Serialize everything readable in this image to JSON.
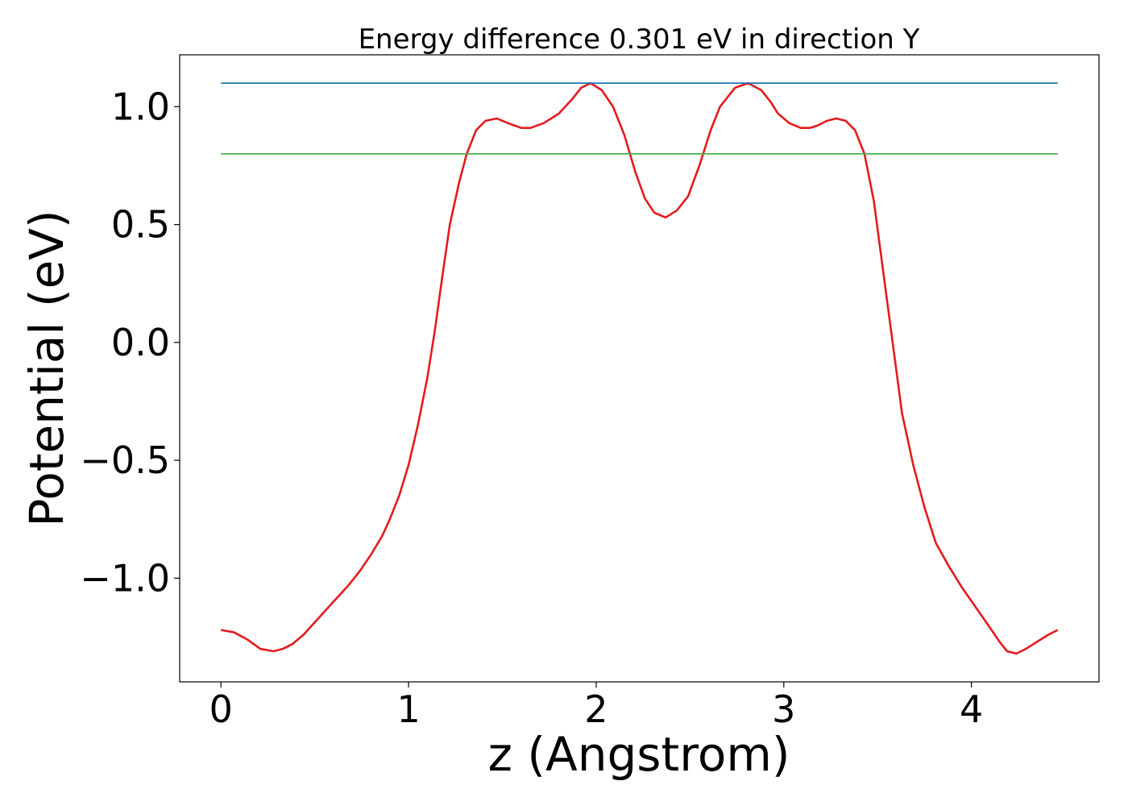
{
  "chart_data": {
    "type": "line",
    "title": "Energy difference 0.301 eV in direction Y",
    "xlabel": "z (Angstrom)",
    "ylabel": "Potential (eV)",
    "xlim": [
      -0.22,
      4.68
    ],
    "ylim": [
      -1.44,
      1.22
    ],
    "grid": false,
    "x_ticks": [
      0,
      1,
      2,
      3,
      4
    ],
    "x_tick_labels": [
      "0",
      "1",
      "2",
      "3",
      "4"
    ],
    "y_ticks": [
      -1.0,
      -0.5,
      0.0,
      0.5,
      1.0
    ],
    "y_tick_labels": [
      "−1.0",
      "−0.5",
      "0.0",
      "0.5",
      "1.0"
    ],
    "colors": {
      "potential": "#e41a1c",
      "max_line": "#1f77b4",
      "level_line": "#4daf4a",
      "axes": "#000000"
    },
    "series": [
      {
        "name": "potential",
        "color": "#e41a1c",
        "x": [
          0.0,
          0.07,
          0.14,
          0.21,
          0.28,
          0.33,
          0.38,
          0.44,
          0.52,
          0.6,
          0.68,
          0.74,
          0.8,
          0.86,
          0.9,
          0.95,
          1.0,
          1.05,
          1.1,
          1.14,
          1.18,
          1.22,
          1.27,
          1.31,
          1.36,
          1.41,
          1.47,
          1.53,
          1.6,
          1.65,
          1.72,
          1.8,
          1.87,
          1.92,
          1.97,
          2.03,
          2.09,
          2.15,
          2.21,
          2.26,
          2.31,
          2.37,
          2.43,
          2.49,
          2.55,
          2.61,
          2.66,
          2.74,
          2.81,
          2.88,
          2.93,
          2.97,
          3.03,
          3.09,
          3.14,
          3.18,
          3.23,
          3.28,
          3.33,
          3.38,
          3.43,
          3.48,
          3.53,
          3.58,
          3.63,
          3.69,
          3.75,
          3.81,
          3.88,
          3.95,
          4.02,
          4.09,
          4.15,
          4.19,
          4.24,
          4.29,
          4.35,
          4.41,
          4.46
        ],
        "y": [
          -1.22,
          -1.23,
          -1.26,
          -1.3,
          -1.31,
          -1.3,
          -1.28,
          -1.24,
          -1.17,
          -1.1,
          -1.03,
          -0.97,
          -0.9,
          -0.82,
          -0.75,
          -0.65,
          -0.52,
          -0.35,
          -0.15,
          0.05,
          0.28,
          0.5,
          0.68,
          0.8,
          0.9,
          0.94,
          0.95,
          0.93,
          0.91,
          0.91,
          0.93,
          0.97,
          1.03,
          1.08,
          1.1,
          1.07,
          1.0,
          0.88,
          0.72,
          0.61,
          0.55,
          0.53,
          0.56,
          0.62,
          0.75,
          0.9,
          1.0,
          1.08,
          1.1,
          1.07,
          1.02,
          0.97,
          0.93,
          0.91,
          0.91,
          0.92,
          0.94,
          0.95,
          0.94,
          0.9,
          0.8,
          0.6,
          0.3,
          0.0,
          -0.3,
          -0.52,
          -0.7,
          -0.85,
          -0.95,
          -1.04,
          -1.12,
          -1.2,
          -1.27,
          -1.31,
          -1.32,
          -1.3,
          -1.27,
          -1.24,
          -1.22
        ]
      },
      {
        "name": "max_line",
        "color": "#1f77b4",
        "x": [
          0.0,
          4.46
        ],
        "y": [
          1.1,
          1.1
        ]
      },
      {
        "name": "level_line",
        "color": "#4daf4a",
        "x": [
          0.0,
          4.46
        ],
        "y": [
          0.8,
          0.8
        ]
      }
    ]
  }
}
